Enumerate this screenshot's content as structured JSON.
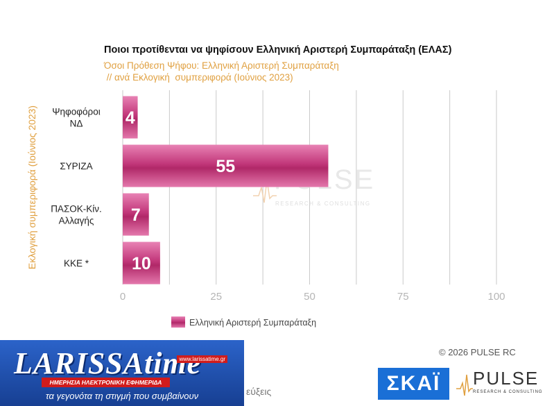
{
  "chart_data": {
    "type": "bar",
    "orientation": "horizontal",
    "title": "Ποιοι προτίθενται να ψηφίσουν Ελληνική Αριστερή Συμπαράταξη (ΕΛΑΣ)",
    "subtitle_line1": "Όσοι Πρόθεση Ψήφου: Ελληνική Αριστερή Συμπαράταξη",
    "subtitle_line2": " // ανά Εκλογική  συμπεριφορά (Ιούνιος 2023)",
    "ylabel": "Εκλογική  συμπεριφορά (Ιούνιος 2023)",
    "xlabel": "",
    "categories": [
      [
        "Ψηφοφόροι",
        "ΝΔ"
      ],
      [
        "ΣΥΡΙΖΑ"
      ],
      [
        "ΠΑΣΟΚ-Κίν.",
        "Αλλαγής"
      ],
      [
        "ΚΚΕ *"
      ]
    ],
    "series": [
      {
        "name": "Ελληνική Αριστερή Συμπαράταξη",
        "values": [
          4,
          55,
          7,
          10
        ]
      }
    ],
    "xlim": [
      0,
      100
    ],
    "xticks": [
      0,
      25,
      50,
      75,
      100
    ],
    "grid": true,
    "legend": "bottom",
    "bar_color": "#c2377a",
    "watermark": {
      "word": "PULSE",
      "sub": "RESEARCH & CONSULTING"
    }
  },
  "copyright": "©  2026  PULSE RC",
  "larissa": {
    "brand": "LARISSAtime",
    "url": "www.larissatime.gr",
    "redbar": "ΗΜΕΡΗΣΙΑ ΗΛΕΚΤΡΟΝΙΚΗ ΕΦΗΜΕΡΙΔΑ",
    "tagline": "τα γεγονότα τη στιγμή που συμβαίνουν"
  },
  "partial_text": "εύξεις",
  "logos": {
    "skai": "ΣΚΑΪ",
    "pulse": "PULSE",
    "pulse_sub": "RESEARCH & CONSULTING"
  }
}
